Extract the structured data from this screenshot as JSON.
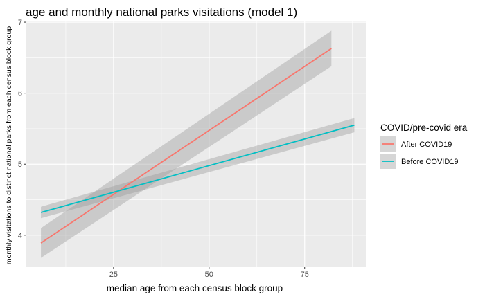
{
  "chart_data": {
    "type": "line",
    "title": "age and monthly national parks visitations (model 1)",
    "xlabel": "median age from each census block group",
    "ylabel": "monthly visitations to distinct national parks from each census block group",
    "xlim": [
      2,
      91
    ],
    "ylim": [
      3.55,
      7.02
    ],
    "x_ticks": [
      25,
      50,
      75
    ],
    "y_ticks": [
      4,
      5,
      6,
      7
    ],
    "grid": true,
    "legend": {
      "title": "COVID/pre-covid era",
      "position": "right"
    },
    "series": [
      {
        "name": "After COVID19",
        "color": "#F8766D",
        "x": [
          6,
          82
        ],
        "y": [
          3.89,
          6.63
        ],
        "ci_lower": [
          3.68,
          6.38
        ],
        "ci_upper": [
          4.1,
          6.88
        ]
      },
      {
        "name": "Before COVID19",
        "color": "#00BFC4",
        "x": [
          6,
          88
        ],
        "y": [
          4.32,
          5.55
        ],
        "ci_lower": [
          4.24,
          5.45
        ],
        "ci_upper": [
          4.4,
          5.65
        ]
      }
    ]
  },
  "colors": {
    "panel_background": "#EBEBEB",
    "grid_major": "#FFFFFF",
    "ribbon": "#999999"
  }
}
